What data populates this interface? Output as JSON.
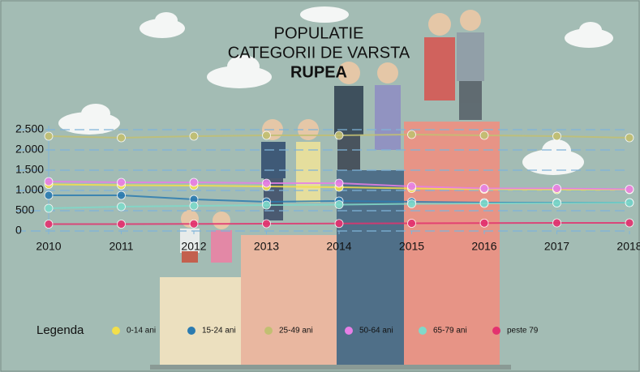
{
  "chart_data": {
    "type": "line",
    "title": [
      "POPULATIE",
      "CATEGORII DE VARSTA",
      "RUPEA"
    ],
    "x": [
      2010,
      2011,
      2012,
      2013,
      2014,
      2015,
      2016,
      2017,
      2018
    ],
    "xlim": [
      2010,
      2018
    ],
    "xticks": [
      2010,
      2011,
      2012,
      2013,
      2014,
      2015,
      2016,
      2017,
      2018
    ],
    "ylim": [
      0,
      2500
    ],
    "yticks": [
      0,
      {
        "value": 500,
        "label": "500"
      },
      {
        "value": 1000,
        "label": "1.000"
      },
      {
        "value": 1500,
        "label": "1.500"
      },
      {
        "value": 2000,
        "label": "2.000"
      },
      {
        "value": 2500,
        "label": "2.500"
      }
    ],
    "grid": true,
    "legend_title": "Legenda",
    "legend": "bottom",
    "series": [
      {
        "name": "0-14 ani",
        "color": "#f3df4a",
        "values": [
          1150,
          1130,
          1120,
          1100,
          1080,
          1050,
          1030,
          1020,
          1020
        ]
      },
      {
        "name": "15-24 ani",
        "color": "#2b7bb0",
        "values": [
          880,
          880,
          780,
          720,
          740,
          720,
          700,
          700,
          700
        ]
      },
      {
        "name": "25-49 ani",
        "color": "#c2bf72",
        "values": [
          2340,
          2300,
          2340,
          2360,
          2360,
          2380,
          2360,
          2340,
          2300
        ]
      },
      {
        "name": "50-64 ani",
        "color": "#e67fe6",
        "values": [
          1220,
          1200,
          1200,
          1180,
          1180,
          1100,
          1050,
          1050,
          1030
        ]
      },
      {
        "name": "65-79 ani",
        "color": "#7fd9c9",
        "values": [
          560,
          600,
          620,
          640,
          650,
          670,
          680,
          690,
          700
        ]
      },
      {
        "name": "peste 79",
        "color": "#e3326f",
        "values": [
          170,
          170,
          175,
          180,
          185,
          190,
          195,
          200,
          200
        ]
      }
    ]
  }
}
